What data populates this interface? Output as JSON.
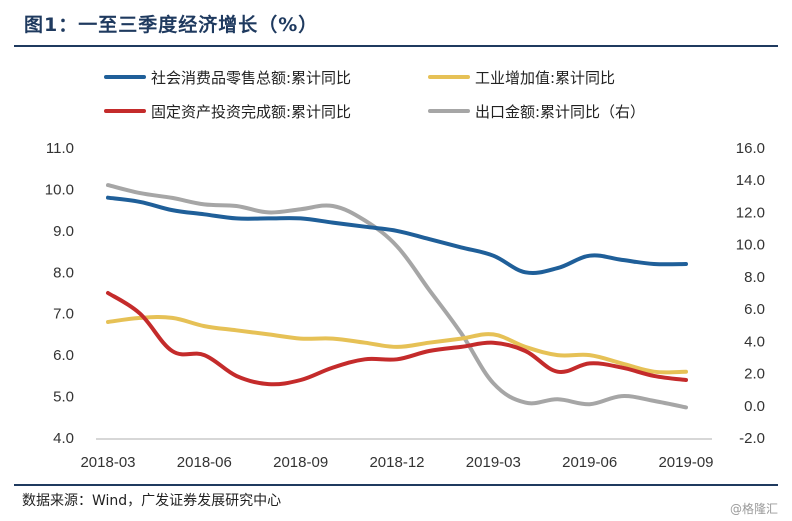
{
  "header": {
    "title": "图1：一至三季度经济增长（%）"
  },
  "footer": {
    "source": "数据来源：Wind，广发证券发展研究中心",
    "watermark": "@格隆汇"
  },
  "chart_data": {
    "type": "line",
    "title": "图1：一至三季度经济增长（%）",
    "x": [
      "2018-03",
      "2018-04",
      "2018-05",
      "2018-06",
      "2018-07",
      "2018-08",
      "2018-09",
      "2018-10",
      "2018-11",
      "2018-12",
      "2019-01",
      "2019-02",
      "2019-03",
      "2019-04",
      "2019-05",
      "2019-06",
      "2019-07",
      "2019-08",
      "2019-09"
    ],
    "x_ticks": [
      "2018-03",
      "2018-06",
      "2018-09",
      "2018-12",
      "2019-03",
      "2019-06",
      "2019-09"
    ],
    "y_left": {
      "ticks": [
        "11.0",
        "10.0",
        "9.0",
        "8.0",
        "7.0",
        "6.0",
        "5.0",
        "4.0"
      ],
      "range": [
        4.0,
        11.0
      ]
    },
    "y_right": {
      "ticks": [
        "16.0",
        "14.0",
        "12.0",
        "10.0",
        "8.0",
        "6.0",
        "4.0",
        "2.0",
        "0.0",
        "-2.0"
      ],
      "range": [
        -2.0,
        16.0
      ]
    },
    "series": [
      {
        "name": "社会消费品零售总额:累计同比",
        "axis": "left",
        "color": "#1f5f99",
        "values": [
          9.8,
          9.7,
          9.5,
          9.4,
          9.3,
          9.3,
          9.3,
          9.2,
          9.1,
          9.0,
          8.8,
          8.6,
          8.4,
          8.0,
          8.1,
          8.4,
          8.3,
          8.2,
          8.2
        ]
      },
      {
        "name": "工业增加值:累计同比",
        "axis": "left",
        "color": "#e6c156",
        "values": [
          6.8,
          6.9,
          6.9,
          6.7,
          6.6,
          6.5,
          6.4,
          6.4,
          6.3,
          6.2,
          6.3,
          6.4,
          6.5,
          6.2,
          6.0,
          6.0,
          5.8,
          5.6,
          5.6
        ]
      },
      {
        "name": "固定资产投资完成额:累计同比",
        "axis": "left",
        "color": "#c42b2b",
        "values": [
          7.5,
          7.0,
          6.1,
          6.0,
          5.5,
          5.3,
          5.4,
          5.7,
          5.9,
          5.9,
          6.1,
          6.2,
          6.3,
          6.1,
          5.6,
          5.8,
          5.7,
          5.5,
          5.4
        ]
      },
      {
        "name": "出口金额:累计同比（右）",
        "axis": "right",
        "color": "#a6a6a6",
        "values": [
          13.7,
          13.2,
          12.9,
          12.5,
          12.4,
          12.0,
          12.2,
          12.4,
          11.5,
          9.9,
          7.2,
          4.5,
          1.4,
          0.2,
          0.4,
          0.1,
          0.6,
          0.3,
          -0.1
        ]
      }
    ],
    "legend_position": "top",
    "grid": false
  }
}
